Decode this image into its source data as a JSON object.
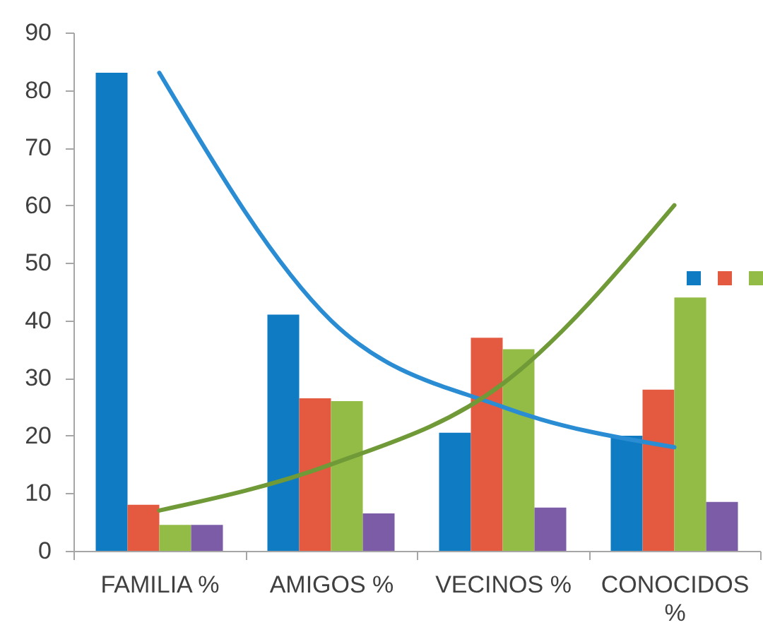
{
  "chart_data": {
    "type": "bar",
    "categories": [
      "FAMILIA %",
      "AMIGOS %",
      "VECINOS %",
      "CONOCIDOS %"
    ],
    "series": [
      {
        "color": "#0f7bc3",
        "values": [
          83,
          41,
          20.5,
          20
        ]
      },
      {
        "color": "#e35a40",
        "values": [
          8,
          26.5,
          37,
          28
        ]
      },
      {
        "color": "#93bc46",
        "values": [
          4.5,
          26,
          35,
          44
        ]
      },
      {
        "color": "#7d5ca7",
        "values": [
          4.5,
          6.5,
          7.5,
          8.5
        ]
      },
      {
        "type": "line",
        "color": "#2a8dd4",
        "values": [
          83,
          40,
          25,
          18
        ]
      },
      {
        "type": "line",
        "color": "#6f9a37",
        "values": [
          7,
          15,
          29,
          60
        ]
      }
    ],
    "ylim": [
      0,
      90
    ],
    "yticks": [
      0,
      10,
      20,
      30,
      40,
      50,
      60,
      70,
      80,
      90
    ]
  }
}
